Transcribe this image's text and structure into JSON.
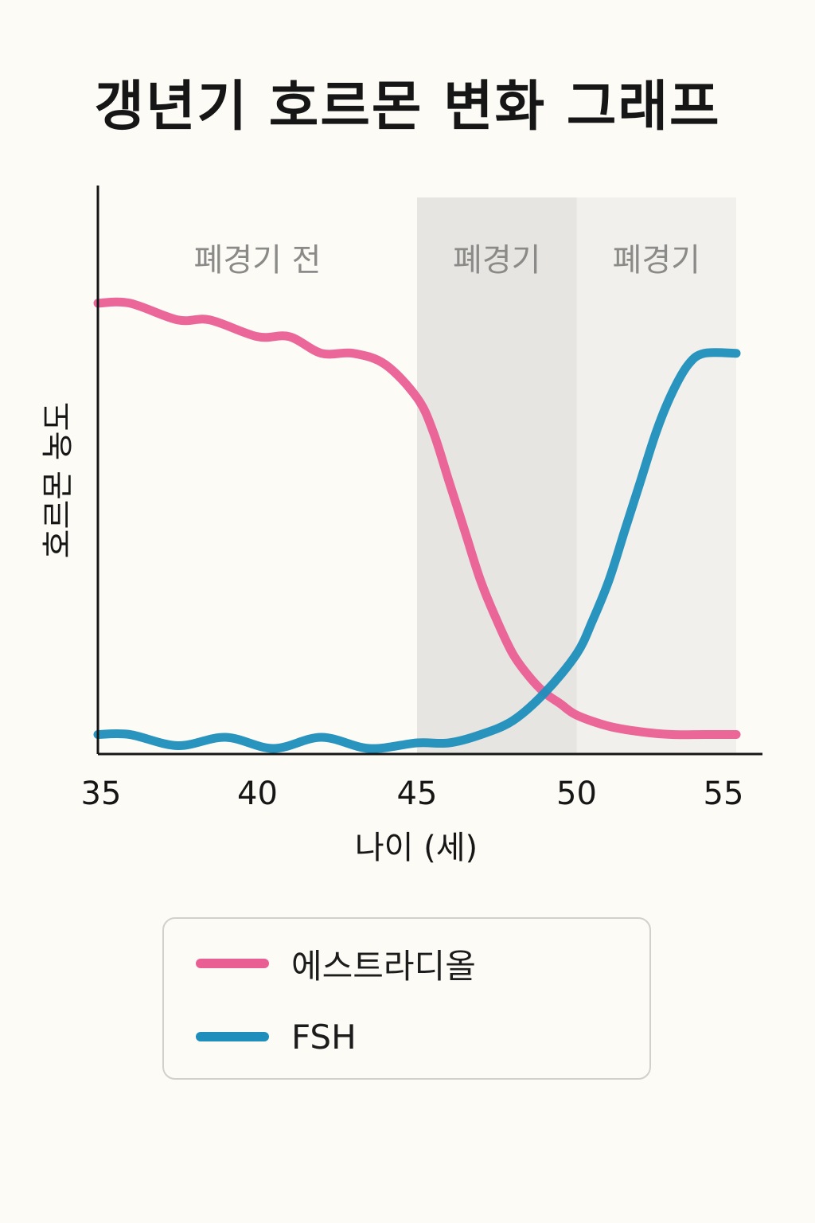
{
  "chart_data": {
    "type": "line",
    "title": "갱년기 호르몬 변화 그래프",
    "xlabel": "나이 (세)",
    "ylabel": "호르몬 농도",
    "xlim": [
      35,
      55
    ],
    "ylim": [
      0,
      100
    ],
    "xticks": [
      "35",
      "40",
      "45",
      "50",
      "55"
    ],
    "grid": false,
    "legend_position": "bottom",
    "regions": [
      {
        "label": "폐경기 전",
        "start": 35,
        "end": 45,
        "color": "#fcfbf6"
      },
      {
        "label": "폐경기",
        "start": 45,
        "end": 50,
        "color": "#e6e5e2"
      },
      {
        "label": "폐경기",
        "start": 50,
        "end": 55,
        "color": "#f1f0ec"
      }
    ],
    "series": [
      {
        "name": "에스트라디올",
        "color": "#ea5f93",
        "x": [
          35,
          36,
          37.5,
          38.5,
          40,
          41,
          42,
          43,
          44,
          45,
          45.5,
          46,
          46.5,
          47,
          47.5,
          48,
          48.5,
          49,
          49.5,
          50,
          51,
          52,
          53,
          54,
          55
        ],
        "y": [
          81,
          81,
          78,
          78,
          75,
          75,
          72,
          72,
          70,
          64,
          58,
          49,
          40,
          31,
          24,
          18,
          14,
          11,
          9,
          7,
          5,
          4,
          3.5,
          3.5,
          3.5
        ]
      },
      {
        "name": "FSH",
        "color": "#1e8fbc",
        "x": [
          35,
          36,
          37.5,
          39,
          40.5,
          42,
          43.5,
          45,
          46,
          47,
          48,
          49,
          50,
          50.5,
          51,
          51.5,
          52,
          52.5,
          53,
          53.5,
          54,
          55
        ],
        "y": [
          3.5,
          3.5,
          1.5,
          3,
          1,
          3,
          1,
          2,
          2,
          3.5,
          6,
          11,
          18,
          24,
          31,
          40,
          49,
          58,
          65,
          70,
          72,
          72
        ]
      }
    ]
  }
}
